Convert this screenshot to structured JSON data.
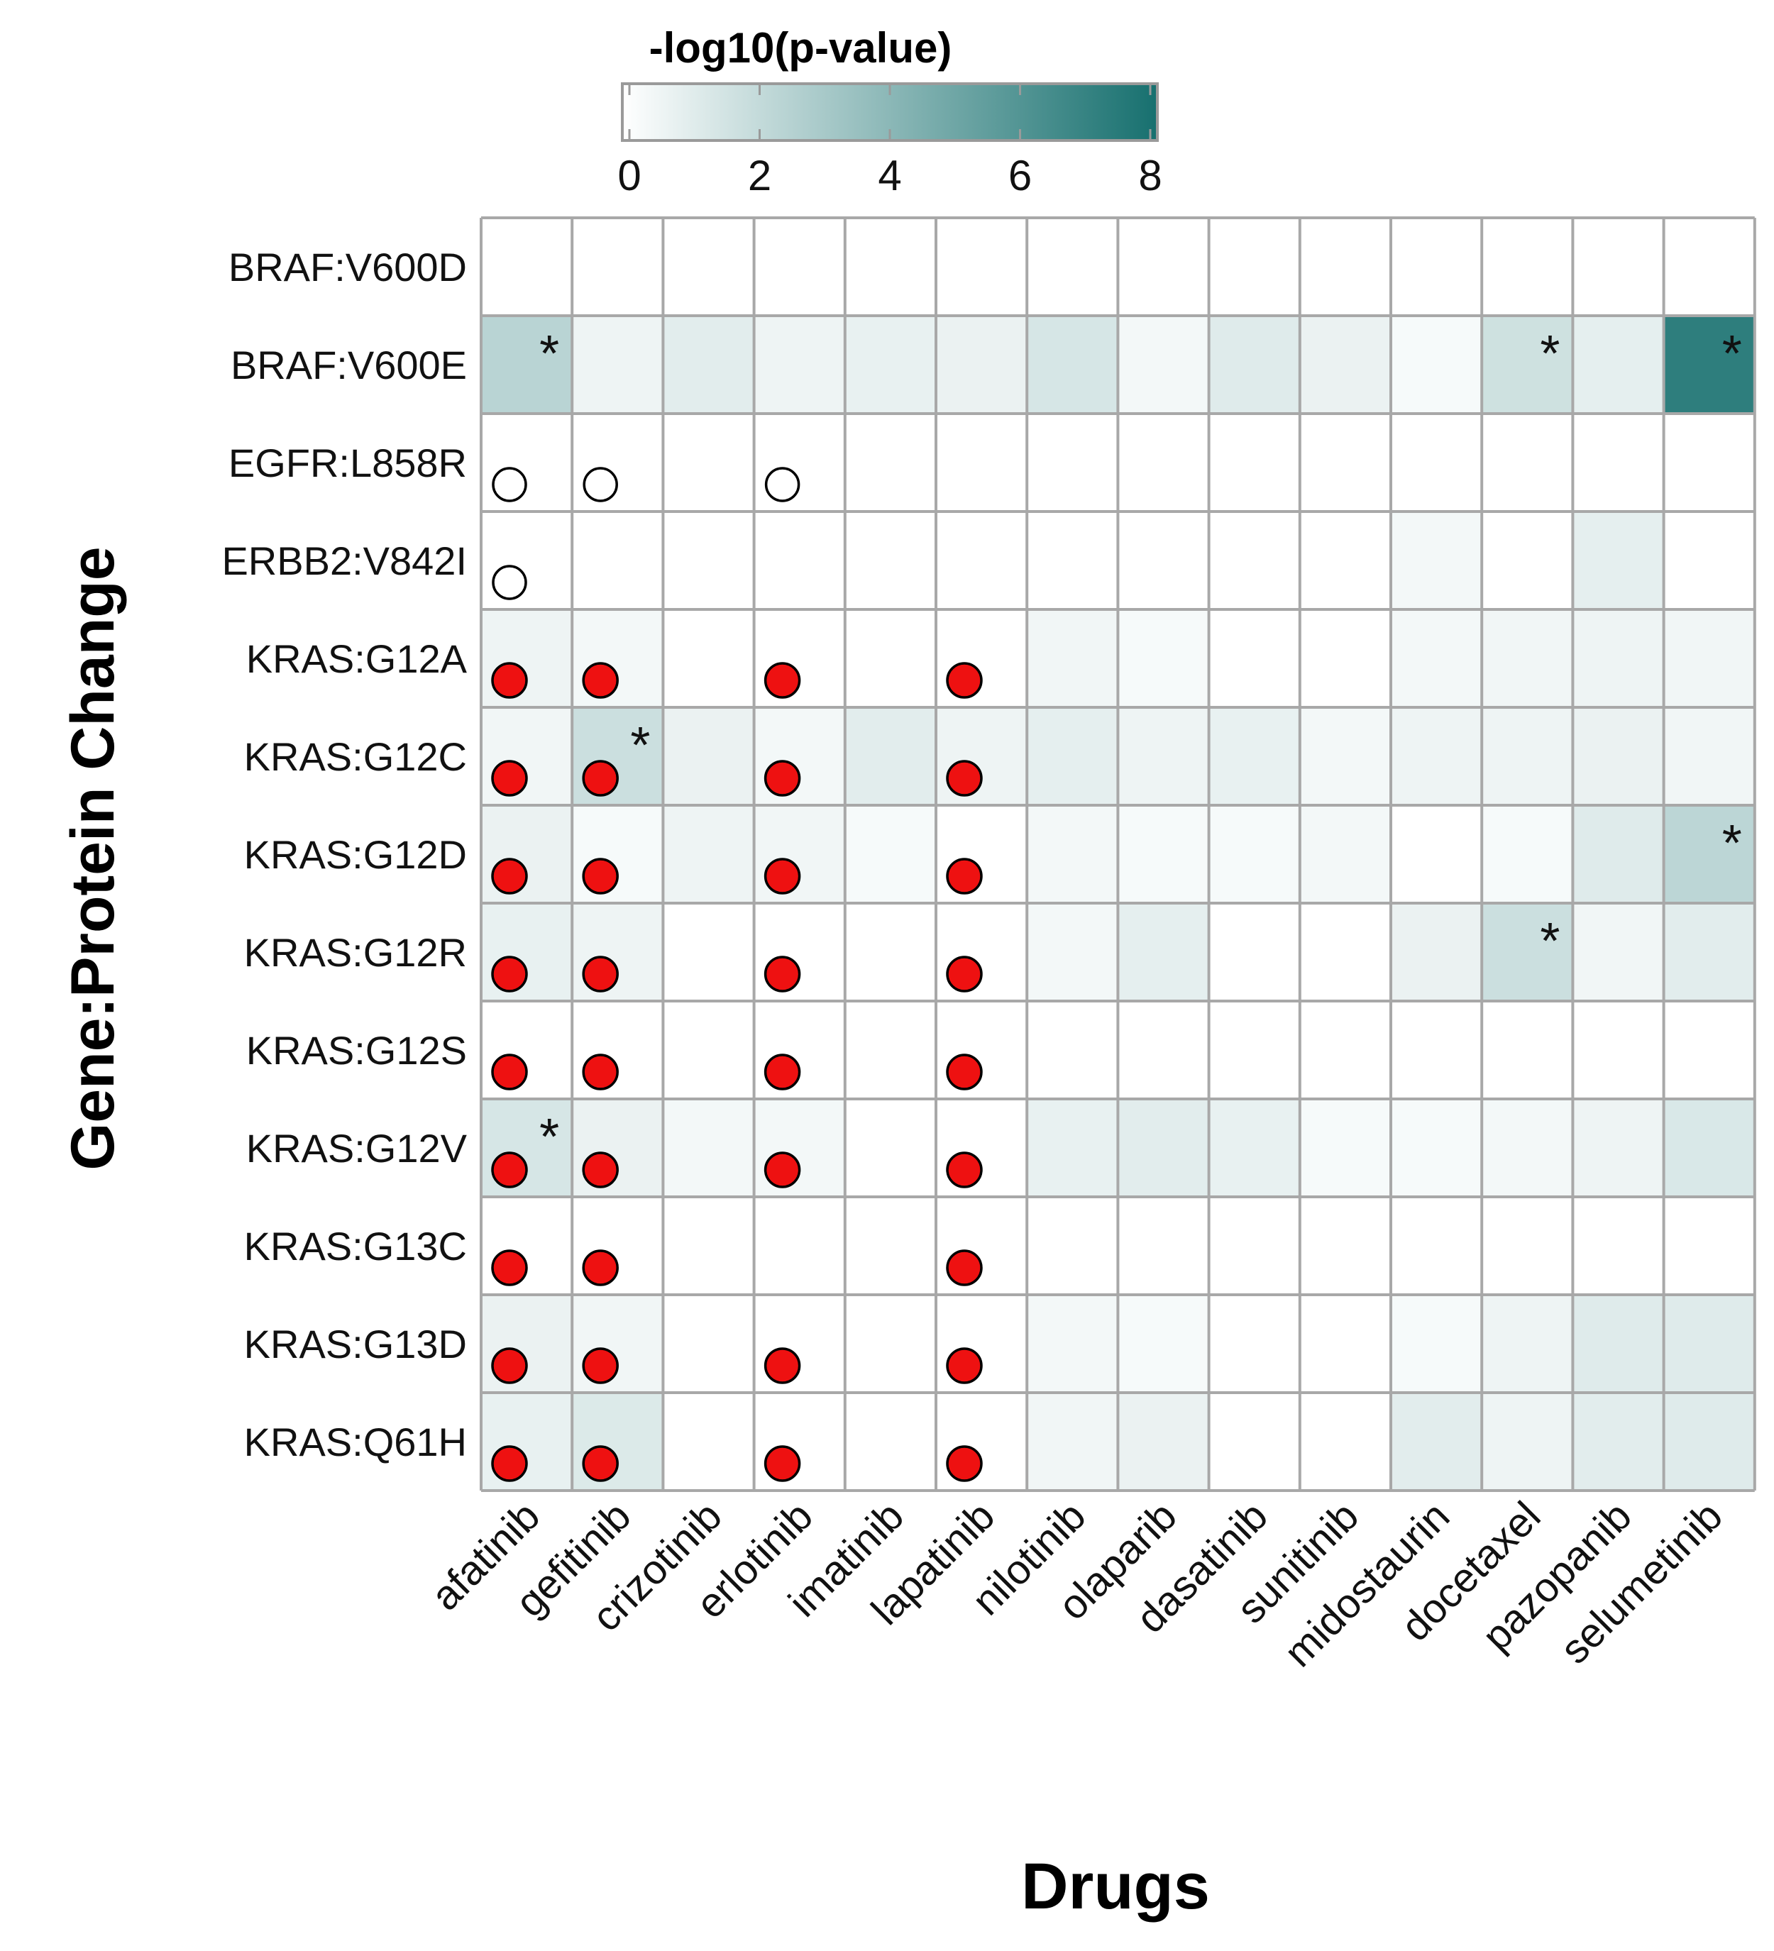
{
  "chart_data": {
    "type": "heatmap",
    "xlabel": "Drugs",
    "ylabel": "Gene:Protein Change",
    "colorbar": {
      "title": "-log10(p-value)",
      "ticks": [
        "0",
        "2",
        "4",
        "6",
        "8"
      ],
      "range": [
        0,
        8
      ],
      "low_color": "#ffffff",
      "high_color": "#17706f"
    },
    "x": [
      "afatinib",
      "gefitinib",
      "crizotinib",
      "erlotinib",
      "imatinib",
      "lapatinib",
      "nilotinib",
      "olaparib",
      "dasatinib",
      "sunitinib",
      "midostaurin",
      "docetaxel",
      "pazopanib",
      "selumetinib"
    ],
    "y": [
      "BRAF:V600D",
      "BRAF:V600E",
      "EGFR:L858R",
      "ERBB2:V842I",
      "KRAS:G12A",
      "KRAS:G12C",
      "KRAS:G12D",
      "KRAS:G12R",
      "KRAS:G12S",
      "KRAS:G12V",
      "KRAS:G13C",
      "KRAS:G13D",
      "KRAS:Q61H"
    ],
    "values": [
      [
        0,
        0,
        0,
        0,
        0,
        0,
        0,
        0,
        0,
        0,
        0,
        0,
        0,
        0
      ],
      [
        2.4,
        0.6,
        1.0,
        0.6,
        0.8,
        0.7,
        1.4,
        0.4,
        1.1,
        0.7,
        0.3,
        1.7,
        0.9,
        7.2
      ],
      [
        0,
        0,
        0,
        0,
        0,
        0,
        0,
        0,
        0,
        0,
        0,
        0,
        0,
        0
      ],
      [
        0,
        0,
        0,
        0,
        0,
        0,
        0,
        0,
        0,
        0,
        0.4,
        0,
        0.9,
        0
      ],
      [
        0.6,
        0.4,
        0,
        0,
        0,
        0,
        0.5,
        0.3,
        0,
        0,
        0.4,
        0.5,
        0.6,
        0.5
      ],
      [
        0.5,
        1.8,
        0.7,
        0.4,
        1.0,
        0.6,
        0.9,
        0.6,
        0.8,
        0.4,
        0.6,
        0.6,
        0.7,
        0.5
      ],
      [
        0.7,
        0.3,
        0.6,
        0.5,
        0.3,
        0,
        0.4,
        0.3,
        0.3,
        0.4,
        0,
        0.3,
        1.1,
        2.3
      ],
      [
        0.8,
        0.6,
        0,
        0,
        0,
        0,
        0.4,
        0.9,
        0,
        0,
        0.7,
        1.8,
        0.5,
        1.0
      ],
      [
        0,
        0,
        0,
        0,
        0,
        0,
        0,
        0,
        0,
        0,
        0,
        0,
        0,
        0
      ],
      [
        1.4,
        0.7,
        0.4,
        0.4,
        0,
        0,
        0.8,
        1.0,
        0.8,
        0.3,
        0.3,
        0.4,
        0.6,
        1.3
      ],
      [
        0,
        0,
        0,
        0,
        0,
        0,
        0,
        0,
        0,
        0,
        0,
        0,
        0,
        0
      ],
      [
        0.7,
        0.5,
        0,
        0,
        0,
        0,
        0.4,
        0.3,
        0,
        0,
        0.3,
        0.6,
        1.1,
        1.1
      ],
      [
        0.8,
        1.2,
        0,
        0,
        0,
        0,
        0.5,
        0.7,
        0,
        0,
        1.0,
        0.6,
        1.0,
        1.1
      ]
    ],
    "significant": [
      [
        1,
        0
      ],
      [
        1,
        11
      ],
      [
        1,
        13
      ],
      [
        5,
        1
      ],
      [
        6,
        13
      ],
      [
        7,
        11
      ],
      [
        9,
        0
      ]
    ],
    "markers": {
      "open_circle": [
        [
          2,
          0
        ],
        [
          2,
          1
        ],
        [
          2,
          3
        ],
        [
          3,
          0
        ]
      ],
      "filled_circle": [
        [
          4,
          0
        ],
        [
          4,
          1
        ],
        [
          4,
          3
        ],
        [
          4,
          5
        ],
        [
          5,
          0
        ],
        [
          5,
          1
        ],
        [
          5,
          3
        ],
        [
          5,
          5
        ],
        [
          6,
          0
        ],
        [
          6,
          1
        ],
        [
          6,
          3
        ],
        [
          6,
          5
        ],
        [
          7,
          0
        ],
        [
          7,
          1
        ],
        [
          7,
          3
        ],
        [
          7,
          5
        ],
        [
          8,
          0
        ],
        [
          8,
          1
        ],
        [
          8,
          3
        ],
        [
          8,
          5
        ],
        [
          9,
          0
        ],
        [
          9,
          1
        ],
        [
          9,
          3
        ],
        [
          9,
          5
        ],
        [
          10,
          0
        ],
        [
          10,
          1
        ],
        [
          10,
          5
        ],
        [
          11,
          0
        ],
        [
          11,
          1
        ],
        [
          11,
          3
        ],
        [
          11,
          5
        ],
        [
          12,
          0
        ],
        [
          12,
          1
        ],
        [
          12,
          3
        ],
        [
          12,
          5
        ]
      ],
      "filled_color": "#ee1111",
      "grid_color": "#a8a8a8"
    }
  }
}
